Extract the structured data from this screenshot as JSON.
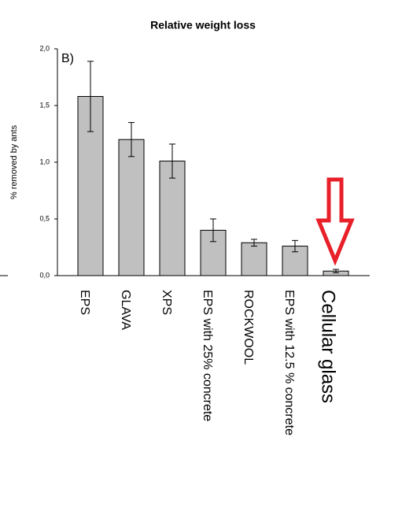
{
  "chart_data": {
    "type": "bar",
    "title": "Relative weight loss",
    "panel_label": "B)",
    "y_label": "% removed by ants",
    "categories": [
      "EPS",
      "GLAVA",
      "XPS",
      "EPS with 25% concrete",
      "ROCKWOOL",
      "EPS with 12.5 % concrete",
      "Cellular glass"
    ],
    "values": [
      1.58,
      1.2,
      1.01,
      0.4,
      0.29,
      0.26,
      0.04
    ],
    "errors": [
      0.31,
      0.15,
      0.15,
      0.1,
      0.03,
      0.05,
      0.015
    ],
    "color": "#c0c0c0",
    "ylim": [
      0,
      2
    ],
    "yticks": [
      {
        "value": 0,
        "label": "0,0"
      },
      {
        "value": 0.5,
        "label": "0,5"
      },
      {
        "value": 1,
        "label": "1,0"
      },
      {
        "value": 1.5,
        "label": "1,5"
      },
      {
        "value": 2,
        "label": "2,0"
      }
    ],
    "grid": false
  }
}
